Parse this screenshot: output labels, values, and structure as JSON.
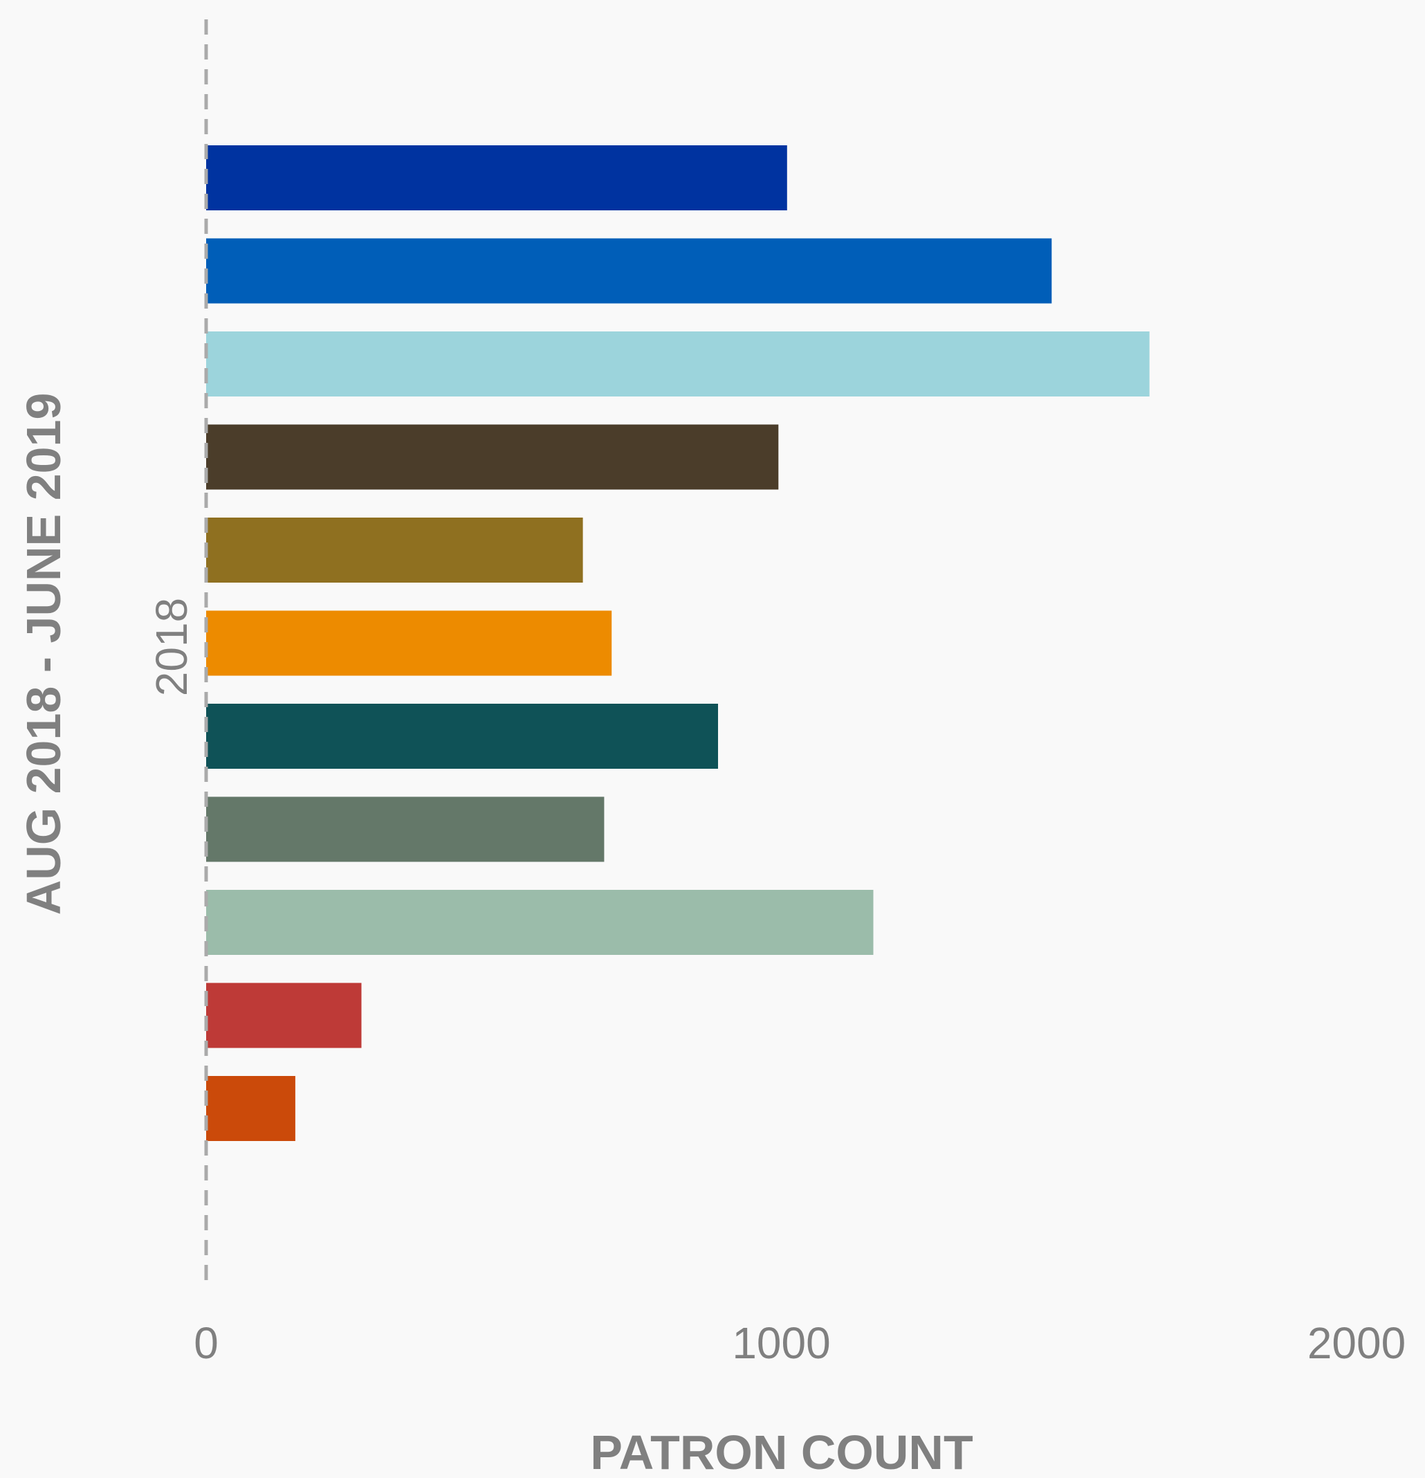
{
  "chart_data": {
    "type": "bar",
    "orientation": "horizontal",
    "xlabel": "PATRON COUNT",
    "ylabel": "AUG 2018 - JUNE 2019",
    "category_label": "2018",
    "xlim": [
      0,
      2000
    ],
    "x_ticks": [
      0,
      1000,
      2000
    ],
    "grid": false,
    "legend": "none",
    "bars": [
      {
        "value": 1010,
        "color": "#0033a0"
      },
      {
        "value": 1470,
        "color": "#005eb8"
      },
      {
        "value": 1640,
        "color": "#9cd4dc"
      },
      {
        "value": 995,
        "color": "#4b3d2a"
      },
      {
        "value": 655,
        "color": "#8f7020"
      },
      {
        "value": 705,
        "color": "#ed8b00"
      },
      {
        "value": 890,
        "color": "#0f5257"
      },
      {
        "value": 692,
        "color": "#647869"
      },
      {
        "value": 1160,
        "color": "#9bbcaa"
      },
      {
        "value": 270,
        "color": "#be3a37"
      },
      {
        "value": 155,
        "color": "#cb4a0a"
      }
    ],
    "colors": {
      "background": "#f9f9f9",
      "text": "#808080",
      "zero_line": "#aaaaaa"
    }
  }
}
